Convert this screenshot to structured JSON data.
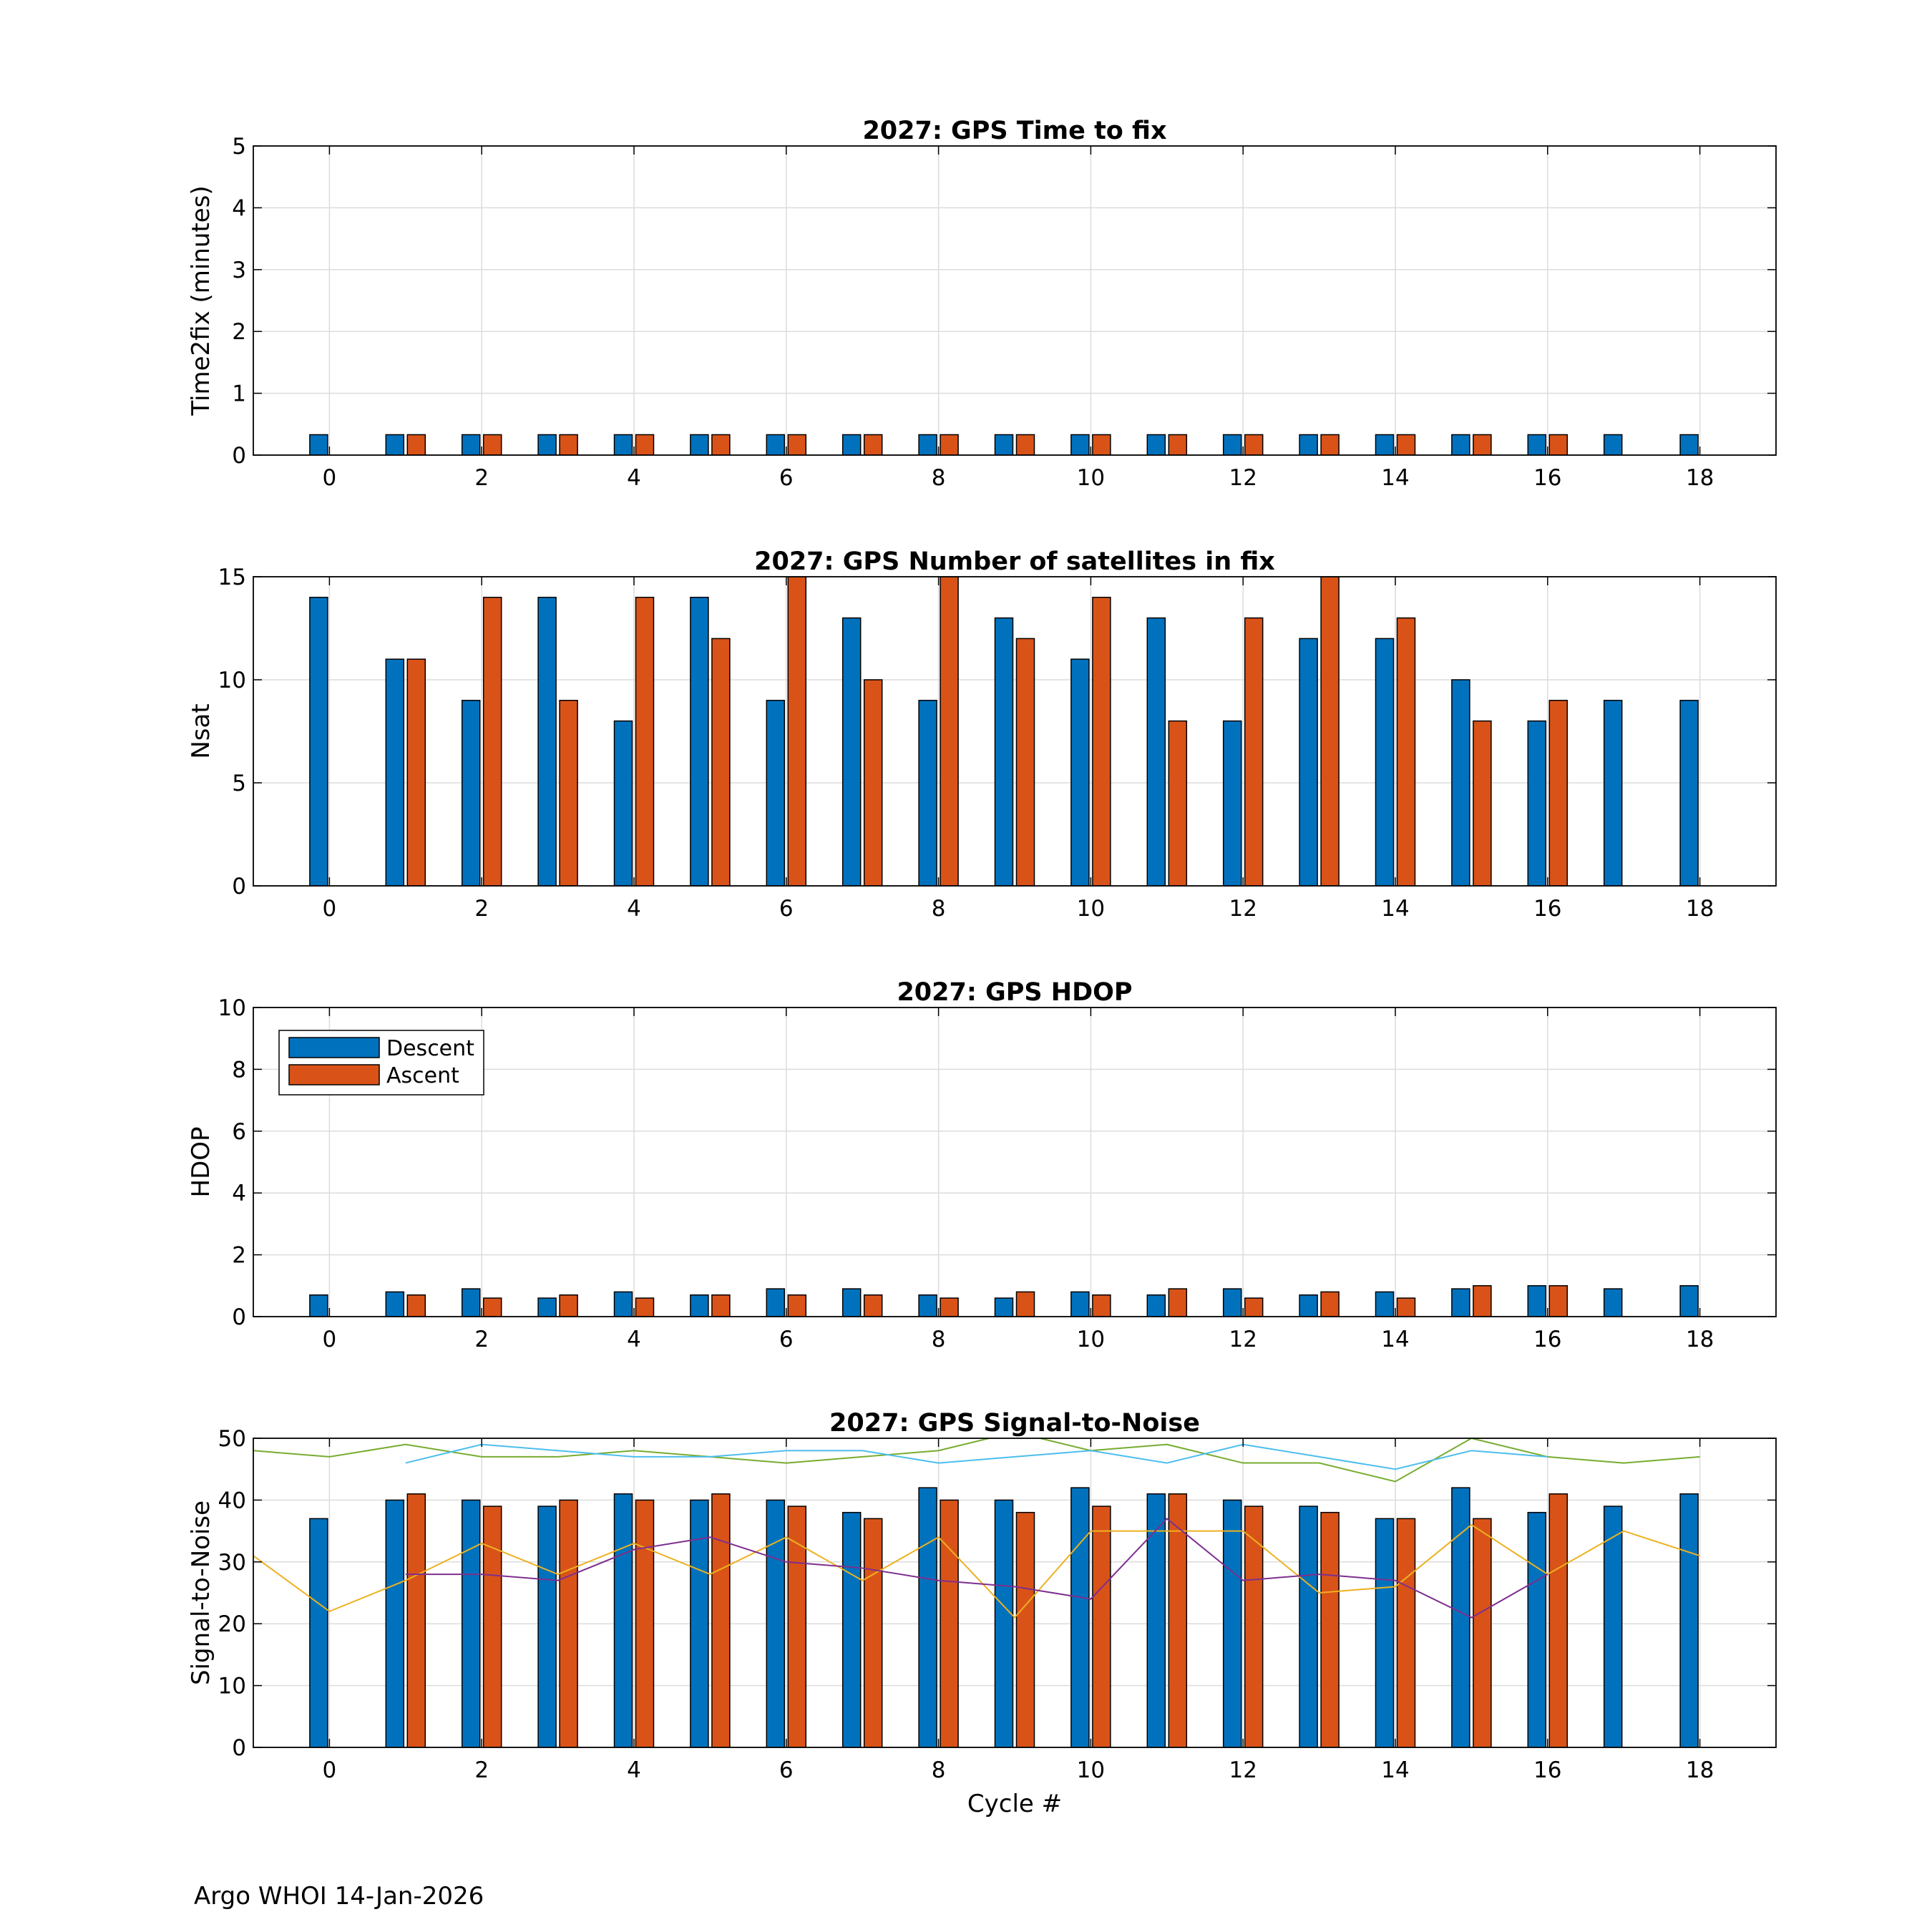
{
  "footer": "Argo WHOI 14-Jan-2026",
  "colors": {
    "descent": "#0072BD",
    "ascent": "#D95319",
    "snr_lines": [
      "#EDB120",
      "#7E2F8E",
      "#77AC30",
      "#4DBEEE"
    ],
    "grid": "#dcdcdc"
  },
  "chart_data": [
    {
      "type": "bar",
      "title": "2027: GPS Time to fix",
      "xlabel": "",
      "ylabel": "Time2fix (minutes)",
      "xlim": [
        -1,
        19
      ],
      "ylim": [
        0,
        5
      ],
      "xticks": [
        0,
        2,
        4,
        6,
        8,
        10,
        12,
        14,
        16,
        18
      ],
      "yticks": [
        0,
        1,
        2,
        3,
        4,
        5
      ],
      "grid": true,
      "x": [
        0,
        1,
        2,
        3,
        4,
        5,
        6,
        7,
        8,
        9,
        10,
        11,
        12,
        13,
        14,
        15,
        16,
        17,
        18
      ],
      "series": [
        {
          "name": "Descent",
          "values": [
            0.33,
            0.33,
            0.33,
            0.33,
            0.33,
            0.33,
            0.33,
            0.33,
            0.33,
            0.33,
            0.33,
            0.33,
            0.33,
            0.33,
            0.33,
            0.33,
            0.33,
            0.33,
            0.33
          ]
        },
        {
          "name": "Ascent",
          "values": [
            null,
            0.33,
            0.33,
            0.33,
            0.33,
            0.33,
            0.33,
            0.33,
            0.33,
            0.33,
            0.33,
            0.33,
            0.33,
            0.33,
            0.33,
            0.33,
            0.33,
            null,
            null
          ]
        }
      ]
    },
    {
      "type": "bar",
      "title": "2027: GPS Number of satellites in fix",
      "xlabel": "",
      "ylabel": "Nsat",
      "xlim": [
        -1,
        19
      ],
      "ylim": [
        0,
        15
      ],
      "xticks": [
        0,
        2,
        4,
        6,
        8,
        10,
        12,
        14,
        16,
        18
      ],
      "yticks": [
        0,
        5,
        10,
        15
      ],
      "grid": true,
      "x": [
        0,
        1,
        2,
        3,
        4,
        5,
        6,
        7,
        8,
        9,
        10,
        11,
        12,
        13,
        14,
        15,
        16,
        17,
        18
      ],
      "series": [
        {
          "name": "Descent",
          "values": [
            14,
            11,
            9,
            14,
            8,
            14,
            9,
            13,
            9,
            13,
            11,
            13,
            8,
            12,
            12,
            10,
            8,
            9,
            9
          ]
        },
        {
          "name": "Ascent",
          "values": [
            null,
            11,
            14,
            9,
            14,
            12,
            15,
            10,
            15,
            12,
            14,
            8,
            13,
            15,
            13,
            8,
            9,
            null,
            null
          ]
        }
      ]
    },
    {
      "type": "bar",
      "title": "2027: GPS HDOP",
      "xlabel": "",
      "ylabel": "HDOP",
      "xlim": [
        -1,
        19
      ],
      "ylim": [
        0,
        10
      ],
      "xticks": [
        0,
        2,
        4,
        6,
        8,
        10,
        12,
        14,
        16,
        18
      ],
      "yticks": [
        0,
        2,
        4,
        6,
        8,
        10
      ],
      "grid": true,
      "legend": {
        "placement": "top-left",
        "entries": [
          "Descent",
          "Ascent"
        ]
      },
      "x": [
        0,
        1,
        2,
        3,
        4,
        5,
        6,
        7,
        8,
        9,
        10,
        11,
        12,
        13,
        14,
        15,
        16,
        17,
        18
      ],
      "series": [
        {
          "name": "Descent",
          "values": [
            0.7,
            0.8,
            0.9,
            0.6,
            0.8,
            0.7,
            0.9,
            0.9,
            0.7,
            0.6,
            0.8,
            0.7,
            0.9,
            0.7,
            0.8,
            0.9,
            1.0,
            0.9,
            1.0
          ]
        },
        {
          "name": "Ascent",
          "values": [
            null,
            0.7,
            0.6,
            0.7,
            0.6,
            0.7,
            0.7,
            0.7,
            0.6,
            0.8,
            0.7,
            0.9,
            0.6,
            0.8,
            0.6,
            1.0,
            1.0,
            null,
            null
          ]
        }
      ]
    },
    {
      "type": "bar",
      "title": "2027: GPS Signal-to-Noise",
      "xlabel": "Cycle #",
      "ylabel": "Signal-to-Noise",
      "xlim": [
        -1,
        19
      ],
      "ylim": [
        0,
        50
      ],
      "xticks": [
        0,
        2,
        4,
        6,
        8,
        10,
        12,
        14,
        16,
        18
      ],
      "yticks": [
        0,
        10,
        20,
        30,
        40,
        50
      ],
      "grid": true,
      "x": [
        0,
        1,
        2,
        3,
        4,
        5,
        6,
        7,
        8,
        9,
        10,
        11,
        12,
        13,
        14,
        15,
        16,
        17,
        18
      ],
      "series": [
        {
          "name": "Descent",
          "values": [
            37,
            40,
            40,
            39,
            41,
            40,
            40,
            38,
            42,
            40,
            42,
            41,
            40,
            39,
            37,
            42,
            38,
            39,
            41
          ]
        },
        {
          "name": "Ascent",
          "values": [
            null,
            41,
            39,
            40,
            40,
            41,
            39,
            37,
            40,
            38,
            39,
            41,
            39,
            38,
            37,
            37,
            41,
            null,
            null
          ]
        }
      ],
      "lines": [
        {
          "x": [
            -1,
            0,
            1,
            2,
            3,
            4,
            5,
            6,
            7,
            8,
            9,
            10,
            11,
            12,
            13,
            14,
            15,
            16,
            17,
            18
          ],
          "values": [
            31,
            22,
            27,
            33,
            28,
            33,
            28,
            34,
            27,
            34,
            21,
            35,
            35,
            35,
            25,
            26,
            36,
            28,
            35,
            31
          ]
        },
        {
          "x": [
            1,
            2,
            3,
            4,
            5,
            6,
            7,
            8,
            9,
            10,
            11,
            12,
            13,
            14,
            15,
            16
          ],
          "values": [
            28,
            28,
            27,
            32,
            34,
            30,
            29,
            27,
            26,
            24,
            37,
            27,
            28,
            27,
            21,
            28
          ]
        },
        {
          "x": [
            -1,
            0,
            1,
            2,
            3,
            4,
            5,
            6,
            7,
            8,
            9,
            10,
            11,
            12,
            13,
            14,
            15,
            16,
            17,
            18
          ],
          "values": [
            48,
            47,
            49,
            47,
            47,
            48,
            47,
            46,
            47,
            48,
            51,
            48,
            49,
            46,
            46,
            43,
            50,
            47,
            46,
            47
          ]
        },
        {
          "x": [
            1,
            2,
            3,
            4,
            5,
            6,
            7,
            8,
            9,
            10,
            11,
            12,
            13,
            14,
            15,
            16
          ],
          "values": [
            46,
            49,
            48,
            47,
            47,
            48,
            48,
            46,
            47,
            48,
            46,
            49,
            47,
            45,
            48,
            47
          ]
        }
      ]
    }
  ]
}
